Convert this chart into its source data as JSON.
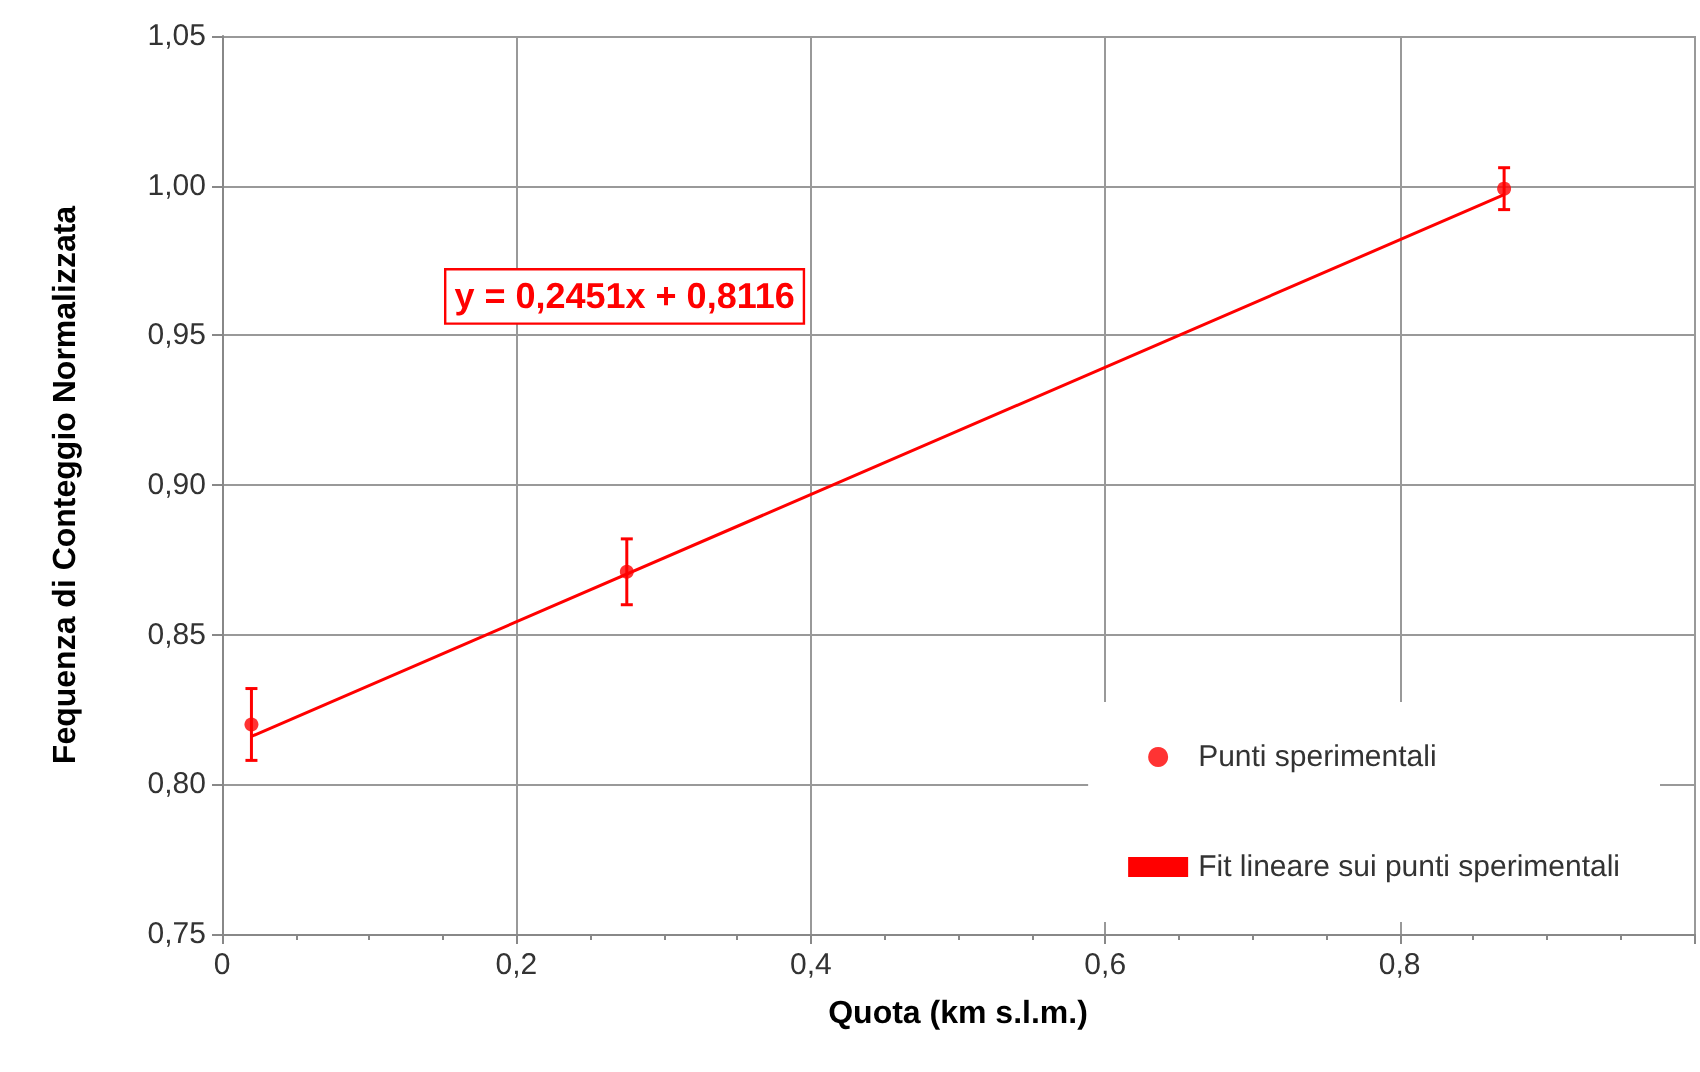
{
  "chart_data": {
    "type": "scatter",
    "xlabel": "Quota (km s.l.m.)",
    "ylabel": "Fequenza di Conteggio Normalizzata",
    "xlim": [
      0,
      1
    ],
    "ylim": [
      0.75,
      1.05
    ],
    "xticks": [
      0,
      {
        "value": 0.2,
        "label": "0,2"
      },
      {
        "value": 0.4,
        "label": "0,4"
      },
      {
        "value": 0.6,
        "label": "0,6"
      },
      {
        "value": 0.8,
        "label": "0,8"
      },
      {
        "value": 1,
        "label": null
      }
    ],
    "yticks": [
      {
        "value": 0.75,
        "label": "0,75"
      },
      {
        "value": 0.8,
        "label": "0,80"
      },
      {
        "value": 0.85,
        "label": "0,85"
      },
      {
        "value": 0.9,
        "label": "0,90"
      },
      {
        "value": 0.95,
        "label": "0,95"
      },
      {
        "value": 1,
        "label": "1,00"
      },
      {
        "value": 1.05,
        "label": "1,05"
      }
    ],
    "grid": true,
    "legend": "bottom right",
    "annotations": [
      "y = 0,2451x + 0,8116"
    ],
    "series": [
      {
        "name": "Punti sperimentali",
        "marker": "circle",
        "color": "#ff0000",
        "x": [
          0.02,
          0.275,
          0.871
        ],
        "values": [
          0.82,
          0.871,
          0.999
        ],
        "errors": [
          0.012,
          0.011,
          0.007
        ]
      },
      {
        "name": "Fit lineare sui punti sperimentali",
        "type": "line",
        "marker": "none",
        "line_style": "solid",
        "color": "#ff0000",
        "x": [
          0.02,
          0.871
        ],
        "values": [
          0.816,
          0.997
        ]
      }
    ]
  }
}
